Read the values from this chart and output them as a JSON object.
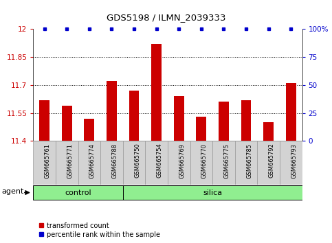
{
  "title": "GDS5198 / ILMN_2039333",
  "samples": [
    "GSM665761",
    "GSM665771",
    "GSM665774",
    "GSM665788",
    "GSM665750",
    "GSM665754",
    "GSM665769",
    "GSM665770",
    "GSM665775",
    "GSM665785",
    "GSM665792",
    "GSM665793"
  ],
  "transformed_counts": [
    11.62,
    11.59,
    11.52,
    11.72,
    11.67,
    11.92,
    11.64,
    11.53,
    11.61,
    11.62,
    11.5,
    11.71
  ],
  "bar_color": "#cc0000",
  "dot_color": "#0000cc",
  "ylim_left": [
    11.4,
    12.0
  ],
  "ylim_right": [
    0,
    100
  ],
  "yticks_left": [
    11.4,
    11.55,
    11.7,
    11.85,
    12.0
  ],
  "ytick_labels_left": [
    "11.4",
    "11.55",
    "11.7",
    "11.85",
    "12"
  ],
  "yticks_right": [
    0,
    25,
    50,
    75,
    100
  ],
  "ytick_labels_right": [
    "0",
    "25",
    "50",
    "75",
    "100%"
  ],
  "hlines": [
    11.55,
    11.7,
    11.85
  ],
  "control_count": 4,
  "silica_count": 8,
  "group_color": "#90ee90",
  "sample_box_color": "#d3d3d3",
  "agent_label": "agent",
  "legend_red_label": "transformed count",
  "legend_blue_label": "percentile rank within the sample",
  "bar_width": 0.45
}
